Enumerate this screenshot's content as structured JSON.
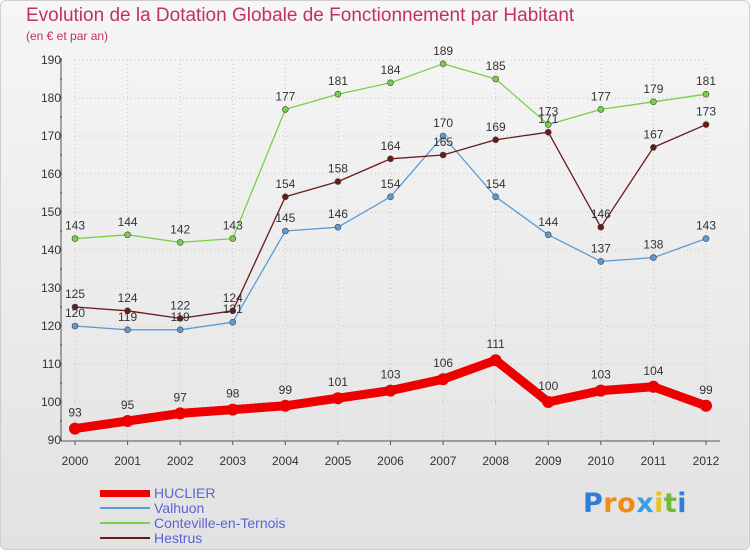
{
  "colors": {
    "HUCLIER": "#ee0000",
    "Valhuon": "#5b9bd5",
    "Conteville-en-Ternois": "#77d048",
    "Hestrus": "#6b1a1a",
    "axis": "#555555",
    "grid": "#c8c8c8",
    "title": "#c0306a",
    "legend_text": "#5a63d6"
  },
  "logo": {
    "text": "Proxiti",
    "letters": [
      "P",
      "r",
      "o",
      "x",
      "i",
      "t",
      "i"
    ],
    "colors": [
      "#2f7fd8",
      "#f28a1a",
      "#f28a1a",
      "#3aa0e0",
      "#e8c31a",
      "#74b83a",
      "#2f7fd8"
    ]
  },
  "chart_data": {
    "type": "line",
    "title": "Evolution de la Dotation Globale de Fonctionnement par Habitant",
    "subtitle": "(en € et par an)",
    "xlabel": "",
    "ylabel": "",
    "ylim": [
      90,
      190
    ],
    "yticks": [
      "90",
      "100",
      "110",
      "120",
      "130",
      "140",
      "150",
      "160",
      "170",
      "180",
      "190"
    ],
    "categories": [
      "2000",
      "2001",
      "2002",
      "2003",
      "2004",
      "2005",
      "2006",
      "2007",
      "2008",
      "2009",
      "2010",
      "2011",
      "2012"
    ],
    "grid": true,
    "legend_position": "bottom-left",
    "series": [
      {
        "name": "HUCLIER",
        "values": [
          93,
          95,
          97,
          98,
          99,
          101,
          103,
          106,
          111,
          100,
          103,
          104,
          99
        ]
      },
      {
        "name": "Valhuon",
        "values": [
          120,
          119,
          119,
          121,
          145,
          146,
          154,
          170,
          154,
          144,
          137,
          138,
          143
        ]
      },
      {
        "name": "Conteville-en-Ternois",
        "values": [
          143,
          144,
          142,
          143,
          177,
          181,
          184,
          189,
          185,
          173,
          177,
          179,
          181
        ]
      },
      {
        "name": "Hestrus",
        "values": [
          125,
          124,
          122,
          124,
          154,
          158,
          164,
          165,
          169,
          171,
          146,
          167,
          173
        ]
      }
    ]
  }
}
